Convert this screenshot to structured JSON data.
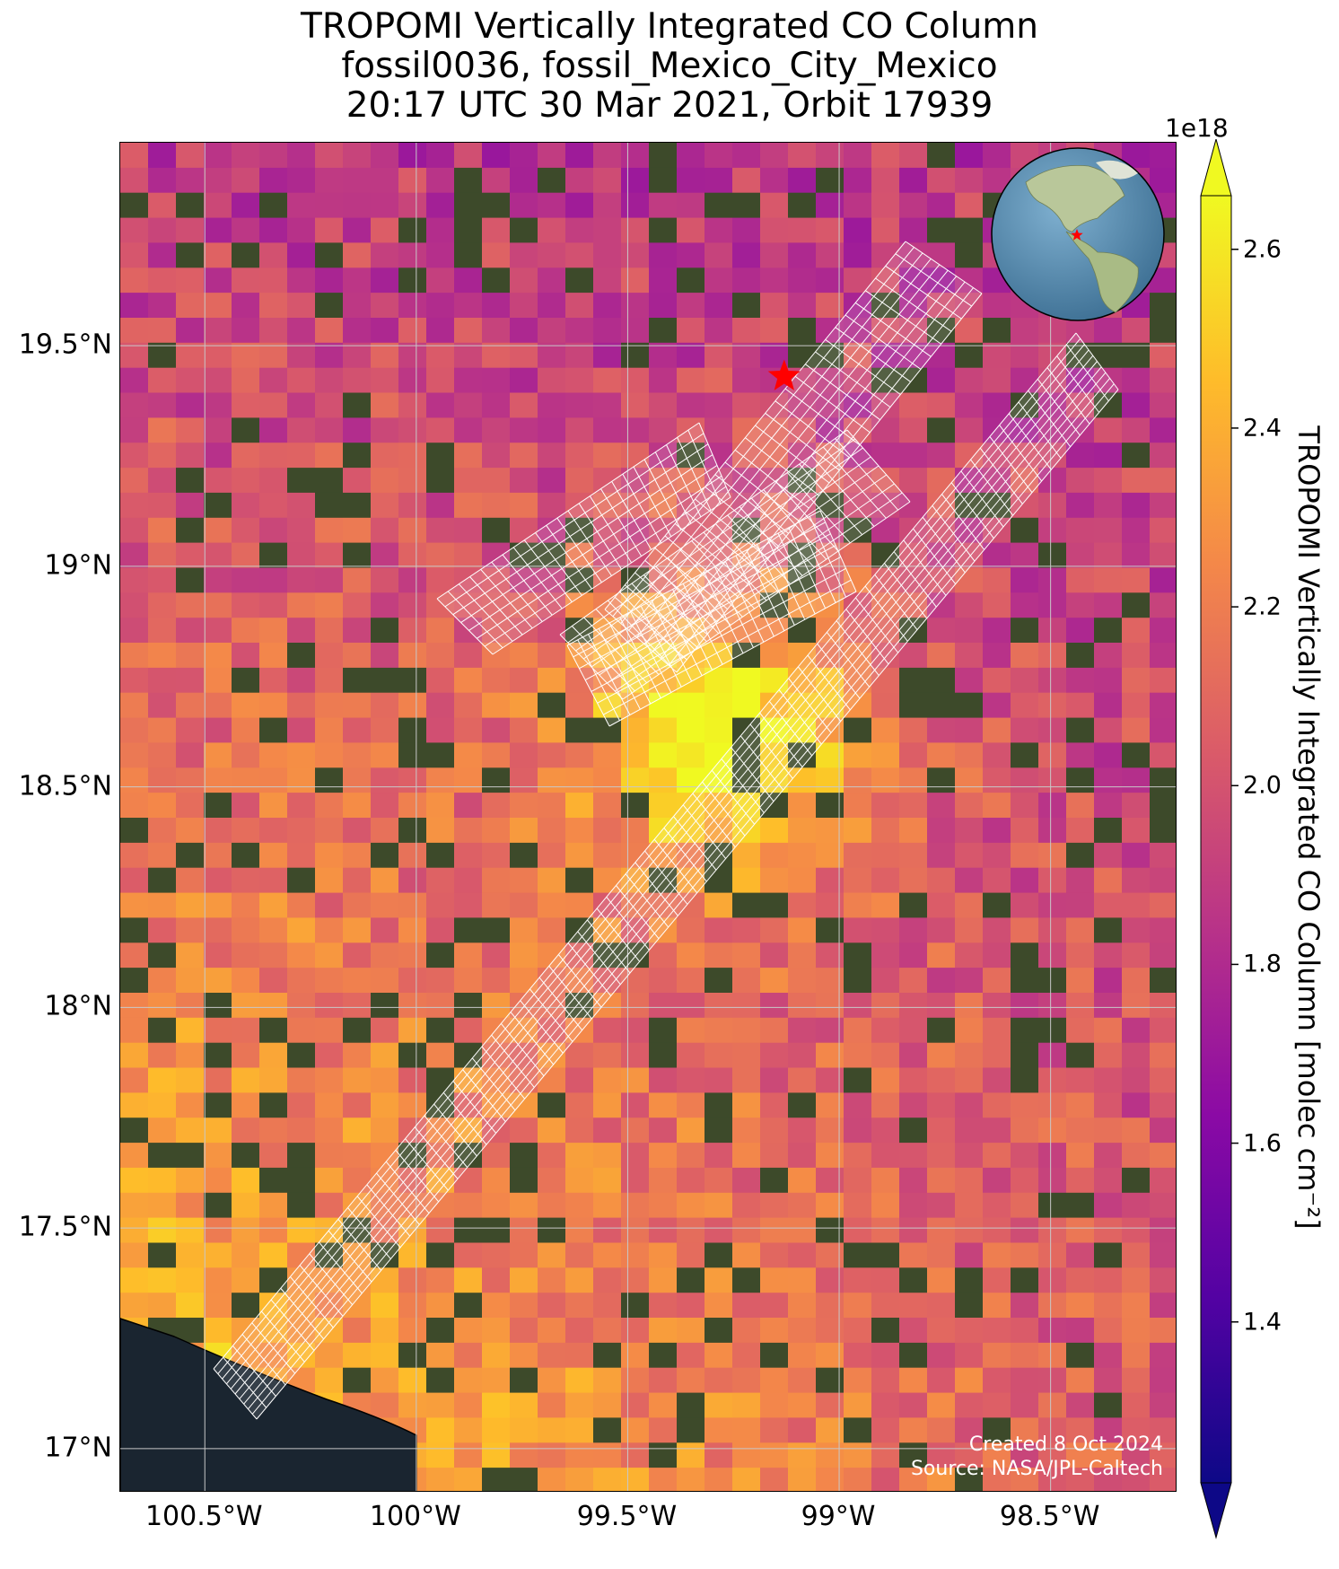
{
  "title": {
    "line1": "TROPOMI Vertically Integrated CO Column",
    "line2": "fossil0036, fossil_Mexico_City_Mexico",
    "line3": "20:17 UTC 30 Mar 2021, Orbit 17939"
  },
  "map": {
    "x_axis": {
      "range_lon": [
        -100.7,
        -98.2
      ],
      "ticks": [
        {
          "value": -100.5,
          "label": "100.5°W"
        },
        {
          "value": -100.0,
          "label": "100°W"
        },
        {
          "value": -99.5,
          "label": "99.5°W"
        },
        {
          "value": -99.0,
          "label": "99°W"
        },
        {
          "value": -98.5,
          "label": "98.5°W"
        }
      ]
    },
    "y_axis": {
      "range_lat": [
        16.9,
        19.96
      ],
      "ticks": [
        {
          "value": 19.5,
          "label": "19.5°N"
        },
        {
          "value": 19.0,
          "label": "19°N"
        },
        {
          "value": 18.5,
          "label": "18.5°N"
        },
        {
          "value": 18.0,
          "label": "18°N"
        },
        {
          "value": 17.5,
          "label": "17.5°N"
        },
        {
          "value": 17.0,
          "label": "17°N"
        }
      ]
    },
    "gridlines": true,
    "target_marker": {
      "lon": -99.13,
      "lat": 19.43,
      "symbol": "star",
      "color": "#ff0000"
    },
    "credits": {
      "created": "Created 8 Oct 2024",
      "source": "Source: NASA/JPL-Caltech"
    },
    "inset_globe": {
      "description": "globe",
      "marker_color": "#ff0000"
    }
  },
  "colorbar": {
    "label": "TROPOMI Vertically Integrated CO Column [molec cm⁻²]",
    "exponent": "1e18",
    "range": [
      1.22,
      2.66
    ],
    "colormap": "plasma",
    "extend": "both",
    "ticks": [
      {
        "value": 1.4,
        "label": "1.4"
      },
      {
        "value": 1.6,
        "label": "1.6"
      },
      {
        "value": 1.8,
        "label": "1.8"
      },
      {
        "value": 2.0,
        "label": "2.0"
      },
      {
        "value": 2.2,
        "label": "2.2"
      },
      {
        "value": 2.4,
        "label": "2.4"
      },
      {
        "value": 2.6,
        "label": "2.6"
      }
    ]
  },
  "colors": {
    "plasma_stops": [
      "#0d0887",
      "#5302a3",
      "#8b0aa5",
      "#b83289",
      "#db5c68",
      "#f48849",
      "#febc2a",
      "#f0f921"
    ],
    "gap_land": "#3d4a2a",
    "ocean": "#1a2530",
    "grid": "#c8c8c8",
    "swath_grid": "#ffffff"
  }
}
